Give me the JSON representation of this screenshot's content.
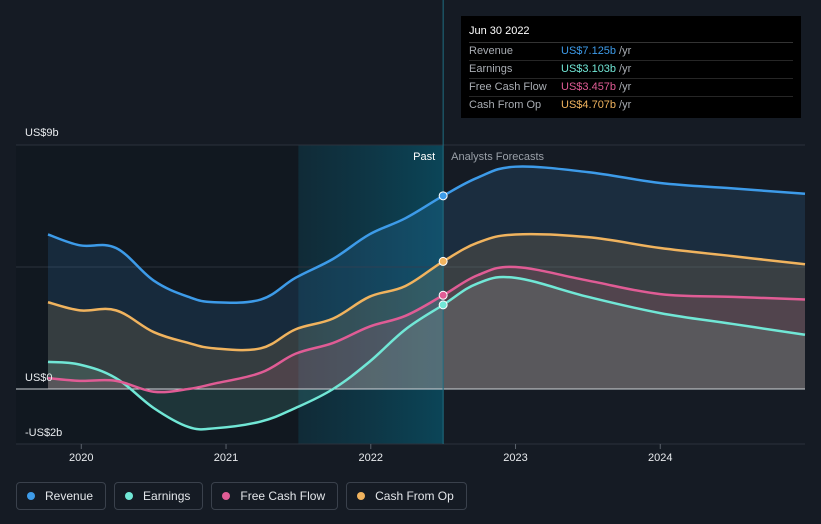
{
  "tooltip": {
    "date": "Jun 30 2022",
    "rows": [
      {
        "label": "Revenue",
        "value": "US$7.125b",
        "unit": "/yr",
        "color": "#3d9be9"
      },
      {
        "label": "Earnings",
        "value": "US$3.103b",
        "unit": "/yr",
        "color": "#71e7d6"
      },
      {
        "label": "Free Cash Flow",
        "value": "US$3.457b",
        "unit": "/yr",
        "color": "#e05c95"
      },
      {
        "label": "Cash From Op",
        "value": "US$4.707b",
        "unit": "/yr",
        "color": "#f0b35e"
      }
    ]
  },
  "chart_data": {
    "type": "area",
    "y_tick_labels": {
      "top": "US$9b",
      "zero": "US$0",
      "bottom": "-US$2b"
    },
    "ylim": [
      -2,
      9
    ],
    "x_ticks": [
      2020,
      2021,
      2022,
      2023,
      2024
    ],
    "xlim": [
      2019.77,
      2025.0
    ],
    "past_label": "Past",
    "forecast_label": "Analysts Forecasts",
    "forecast_start": 2022.5,
    "highlight_start": 2021.5,
    "series": [
      {
        "name": "Revenue",
        "color": "#3d9be9",
        "x": [
          2019.77,
          2019.99,
          2020.24,
          2020.5,
          2020.74,
          2020.92,
          2021.24,
          2021.48,
          2021.74,
          2021.99,
          2022.24,
          2022.5,
          2022.74,
          2023.0,
          2023.5,
          2024.0,
          2024.5,
          2025.0
        ],
        "y": [
          5.7,
          5.3,
          5.2,
          4.0,
          3.4,
          3.2,
          3.3,
          4.1,
          4.8,
          5.7,
          6.3,
          7.125,
          7.8,
          8.2,
          8.0,
          7.6,
          7.4,
          7.2
        ]
      },
      {
        "name": "Earnings",
        "color": "#71e7d6",
        "x": [
          2019.77,
          2019.99,
          2020.24,
          2020.5,
          2020.74,
          2020.92,
          2021.24,
          2021.48,
          2021.74,
          2021.99,
          2022.24,
          2022.5,
          2022.74,
          2023.0,
          2023.5,
          2024.0,
          2024.5,
          2025.0
        ],
        "y": [
          1.0,
          0.9,
          0.4,
          -0.7,
          -1.4,
          -1.45,
          -1.2,
          -0.7,
          0.0,
          1.0,
          2.2,
          3.103,
          3.9,
          4.1,
          3.4,
          2.8,
          2.4,
          2.0
        ]
      },
      {
        "name": "Free Cash Flow",
        "color": "#e05c95",
        "x": [
          2019.77,
          2019.99,
          2020.24,
          2020.5,
          2020.74,
          2020.92,
          2021.24,
          2021.48,
          2021.74,
          2021.99,
          2022.24,
          2022.5,
          2022.74,
          2023.0,
          2023.5,
          2024.0,
          2024.5,
          2025.0
        ],
        "y": [
          0.4,
          0.3,
          0.3,
          -0.1,
          0.0,
          0.2,
          0.6,
          1.3,
          1.7,
          2.3,
          2.7,
          3.457,
          4.2,
          4.5,
          4.0,
          3.5,
          3.4,
          3.3
        ]
      },
      {
        "name": "Cash From Op",
        "color": "#f0b35e",
        "x": [
          2019.77,
          2019.99,
          2020.24,
          2020.5,
          2020.74,
          2020.92,
          2021.24,
          2021.48,
          2021.74,
          2021.99,
          2022.24,
          2022.5,
          2022.74,
          2023.0,
          2023.5,
          2024.0,
          2024.5,
          2025.0
        ],
        "y": [
          3.2,
          2.9,
          2.9,
          2.1,
          1.7,
          1.5,
          1.5,
          2.2,
          2.6,
          3.4,
          3.8,
          4.707,
          5.4,
          5.7,
          5.6,
          5.2,
          4.9,
          4.6
        ]
      }
    ]
  },
  "legend": [
    {
      "label": "Revenue",
      "color": "#3d9be9"
    },
    {
      "label": "Earnings",
      "color": "#71e7d6"
    },
    {
      "label": "Free Cash Flow",
      "color": "#e05c95"
    },
    {
      "label": "Cash From Op",
      "color": "#f0b35e"
    }
  ]
}
